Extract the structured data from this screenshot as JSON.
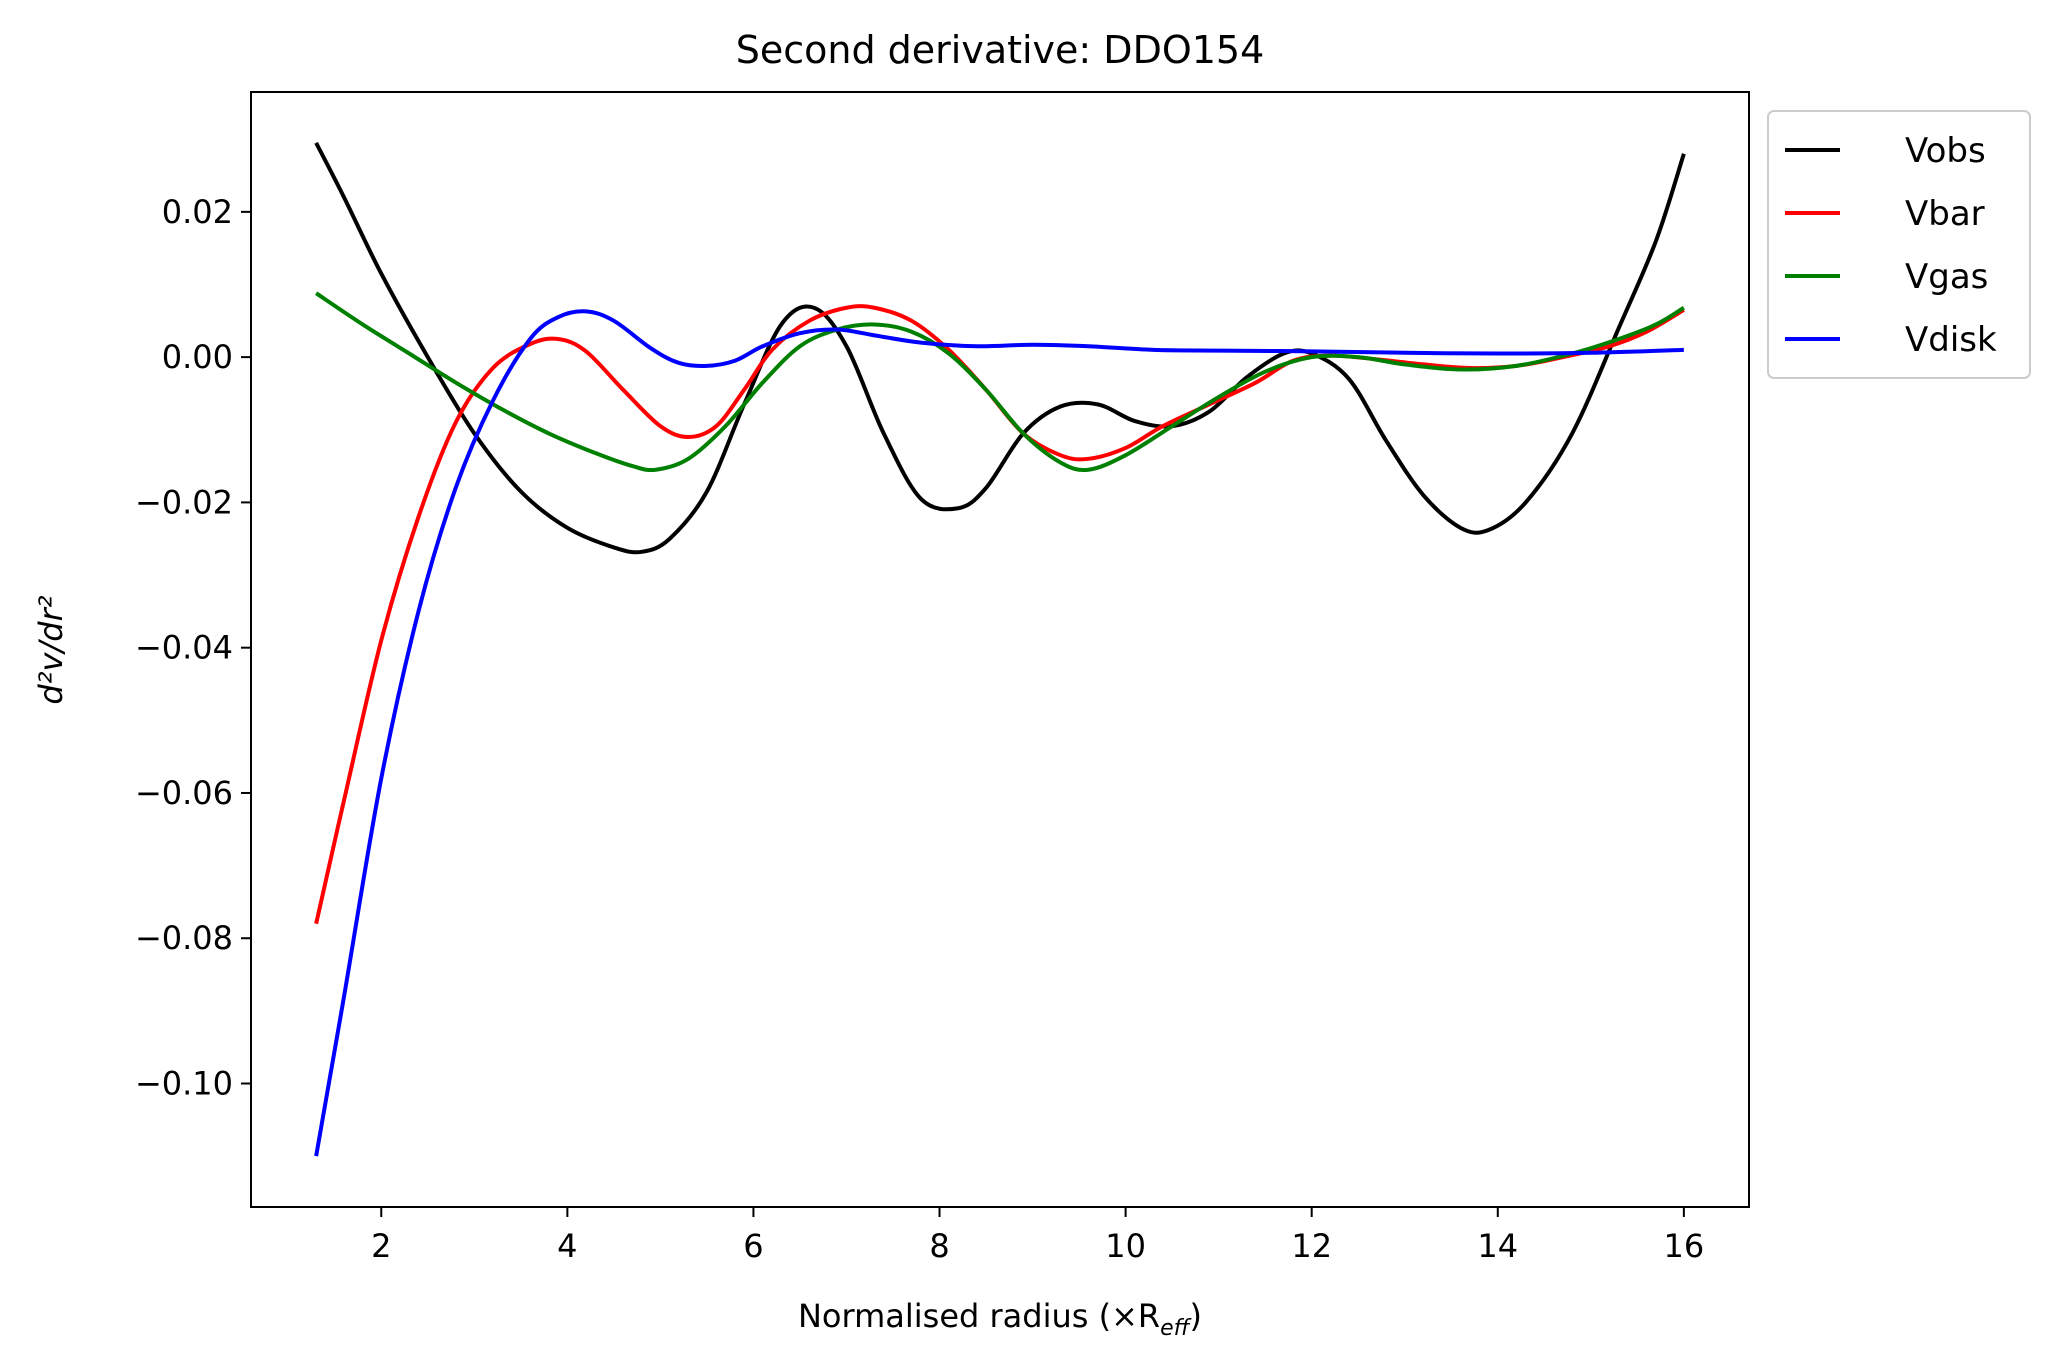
{
  "chart_data": {
    "type": "line",
    "title": "Second derivative: DDO154",
    "xlabel": "Normalised radius (×R",
    "xlabel_sub": "eff",
    "xlabel_close": ")",
    "ylabel": "d²v/dr²",
    "xlim": [
      0.6,
      16.7
    ],
    "ylim": [
      -0.117,
      0.0365
    ],
    "xticks": [
      {
        "value": 2,
        "label": "2"
      },
      {
        "value": 4,
        "label": "4"
      },
      {
        "value": 6,
        "label": "6"
      },
      {
        "value": 8,
        "label": "8"
      },
      {
        "value": 10,
        "label": "10"
      },
      {
        "value": 12,
        "label": "12"
      },
      {
        "value": 14,
        "label": "14"
      },
      {
        "value": 16,
        "label": "16"
      }
    ],
    "yticks": [
      {
        "value": 0.02,
        "label": "0.02"
      },
      {
        "value": 0.0,
        "label": "0.00"
      },
      {
        "value": -0.02,
        "label": "−0.02"
      },
      {
        "value": -0.04,
        "label": "−0.04"
      },
      {
        "value": -0.06,
        "label": "−0.06"
      },
      {
        "value": -0.08,
        "label": "−0.08"
      },
      {
        "value": -0.1,
        "label": "−0.10"
      }
    ],
    "legend_position": "outside-top-right",
    "grid": false,
    "series": [
      {
        "name": "Vobs",
        "color": "#000000",
        "points": [
          [
            1.3,
            0.0295
          ],
          [
            1.6,
            0.022
          ],
          [
            2.0,
            0.0115
          ],
          [
            2.5,
            0.0
          ],
          [
            3.0,
            -0.0105
          ],
          [
            3.5,
            -0.0185
          ],
          [
            4.0,
            -0.0235
          ],
          [
            4.5,
            -0.0262
          ],
          [
            4.8,
            -0.0268
          ],
          [
            5.1,
            -0.025
          ],
          [
            5.5,
            -0.0185
          ],
          [
            5.9,
            -0.0065
          ],
          [
            6.3,
            0.0045
          ],
          [
            6.65,
            0.0068
          ],
          [
            7.0,
            0.0015
          ],
          [
            7.4,
            -0.0105
          ],
          [
            7.8,
            -0.0195
          ],
          [
            8.2,
            -0.0208
          ],
          [
            8.5,
            -0.018
          ],
          [
            8.9,
            -0.0105
          ],
          [
            9.3,
            -0.0068
          ],
          [
            9.7,
            -0.0065
          ],
          [
            10.1,
            -0.0088
          ],
          [
            10.5,
            -0.0095
          ],
          [
            10.9,
            -0.0075
          ],
          [
            11.3,
            -0.0028
          ],
          [
            11.7,
            0.0005
          ],
          [
            12.0,
            0.0005
          ],
          [
            12.4,
            -0.003
          ],
          [
            12.8,
            -0.0115
          ],
          [
            13.2,
            -0.019
          ],
          [
            13.6,
            -0.0235
          ],
          [
            13.9,
            -0.0238
          ],
          [
            14.3,
            -0.02
          ],
          [
            14.8,
            -0.0105
          ],
          [
            15.3,
            0.004
          ],
          [
            15.7,
            0.016
          ],
          [
            16.0,
            0.028
          ]
        ]
      },
      {
        "name": "Vbar",
        "color": "#ff0000",
        "points": [
          [
            1.3,
            -0.078
          ],
          [
            1.6,
            -0.061
          ],
          [
            2.0,
            -0.039
          ],
          [
            2.4,
            -0.022
          ],
          [
            2.8,
            -0.009
          ],
          [
            3.2,
            -0.0015
          ],
          [
            3.6,
            0.0018
          ],
          [
            3.9,
            0.0025
          ],
          [
            4.2,
            0.0008
          ],
          [
            4.6,
            -0.0045
          ],
          [
            5.0,
            -0.0095
          ],
          [
            5.3,
            -0.011
          ],
          [
            5.6,
            -0.0095
          ],
          [
            5.9,
            -0.0045
          ],
          [
            6.2,
            0.001
          ],
          [
            6.6,
            0.005
          ],
          [
            7.0,
            0.0068
          ],
          [
            7.3,
            0.0068
          ],
          [
            7.7,
            0.005
          ],
          [
            8.1,
            0.001
          ],
          [
            8.5,
            -0.0045
          ],
          [
            8.9,
            -0.0105
          ],
          [
            9.3,
            -0.0135
          ],
          [
            9.6,
            -0.014
          ],
          [
            10.0,
            -0.0125
          ],
          [
            10.4,
            -0.0095
          ],
          [
            10.9,
            -0.0065
          ],
          [
            11.4,
            -0.0035
          ],
          [
            11.8,
            -0.0005
          ],
          [
            12.2,
            0.0002
          ],
          [
            12.7,
            -0.0003
          ],
          [
            13.2,
            -0.001
          ],
          [
            13.7,
            -0.0015
          ],
          [
            14.2,
            -0.0012
          ],
          [
            14.7,
            0.0
          ],
          [
            15.2,
            0.0015
          ],
          [
            15.6,
            0.0035
          ],
          [
            16.0,
            0.0065
          ]
        ]
      },
      {
        "name": "Vgas",
        "color": "#008000",
        "points": [
          [
            1.3,
            0.0088
          ],
          [
            1.8,
            0.0045
          ],
          [
            2.3,
            0.0005
          ],
          [
            2.8,
            -0.0035
          ],
          [
            3.3,
            -0.0072
          ],
          [
            3.8,
            -0.0105
          ],
          [
            4.3,
            -0.0132
          ],
          [
            4.7,
            -0.015
          ],
          [
            4.95,
            -0.0155
          ],
          [
            5.3,
            -0.014
          ],
          [
            5.7,
            -0.0095
          ],
          [
            6.1,
            -0.0035
          ],
          [
            6.5,
            0.0015
          ],
          [
            6.9,
            0.0038
          ],
          [
            7.3,
            0.0045
          ],
          [
            7.7,
            0.0035
          ],
          [
            8.1,
            0.0005
          ],
          [
            8.5,
            -0.0045
          ],
          [
            8.9,
            -0.0105
          ],
          [
            9.3,
            -0.0145
          ],
          [
            9.6,
            -0.0155
          ],
          [
            10.0,
            -0.0135
          ],
          [
            10.5,
            -0.0095
          ],
          [
            11.0,
            -0.0055
          ],
          [
            11.5,
            -0.002
          ],
          [
            12.0,
            0.0
          ],
          [
            12.5,
            0.0
          ],
          [
            13.0,
            -0.001
          ],
          [
            13.6,
            -0.0017
          ],
          [
            14.2,
            -0.0012
          ],
          [
            14.8,
            0.0005
          ],
          [
            15.3,
            0.0025
          ],
          [
            15.7,
            0.0045
          ],
          [
            16.0,
            0.0068
          ]
        ]
      },
      {
        "name": "Vdisk",
        "color": "#0000ff",
        "points": [
          [
            1.3,
            -0.11
          ],
          [
            1.6,
            -0.088
          ],
          [
            2.0,
            -0.058
          ],
          [
            2.4,
            -0.035
          ],
          [
            2.8,
            -0.018
          ],
          [
            3.2,
            -0.006
          ],
          [
            3.6,
            0.0025
          ],
          [
            3.9,
            0.0055
          ],
          [
            4.2,
            0.0063
          ],
          [
            4.5,
            0.005
          ],
          [
            4.9,
            0.0012
          ],
          [
            5.2,
            -0.0008
          ],
          [
            5.5,
            -0.0012
          ],
          [
            5.8,
            -0.0005
          ],
          [
            6.1,
            0.0015
          ],
          [
            6.5,
            0.0033
          ],
          [
            6.9,
            0.0038
          ],
          [
            7.3,
            0.003
          ],
          [
            7.8,
            0.002
          ],
          [
            8.4,
            0.0015
          ],
          [
            9.0,
            0.0017
          ],
          [
            9.6,
            0.0015
          ],
          [
            10.3,
            0.001
          ],
          [
            11.0,
            0.0009
          ],
          [
            12.0,
            0.0008
          ],
          [
            13.0,
            0.0006
          ],
          [
            14.0,
            0.0005
          ],
          [
            15.0,
            0.0006
          ],
          [
            16.0,
            0.001
          ]
        ]
      }
    ]
  }
}
